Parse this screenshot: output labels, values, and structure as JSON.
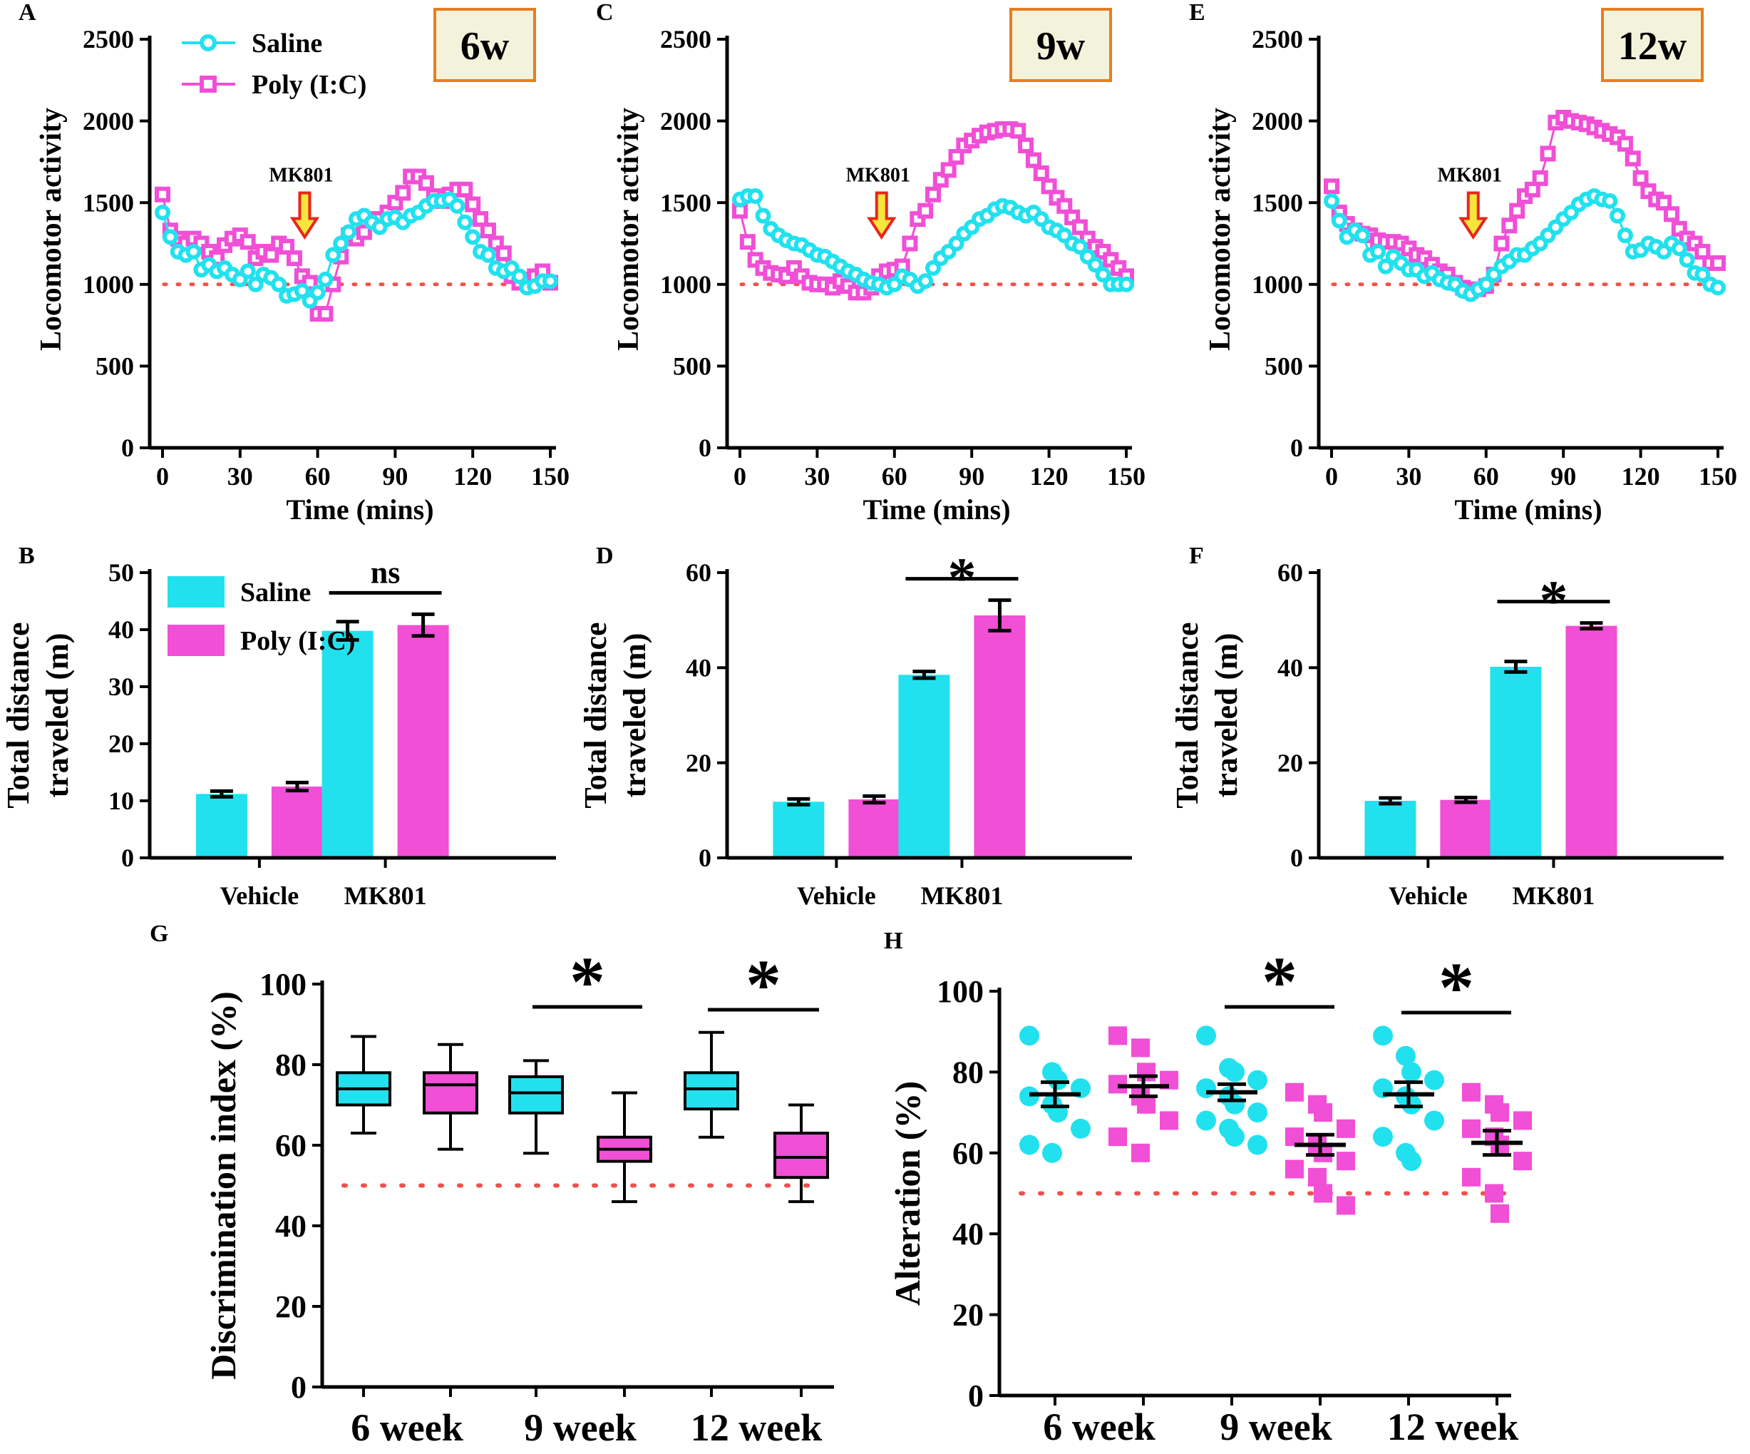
{
  "colors": {
    "saline": "#22E1EE",
    "poly": "#F04FD6",
    "reference": "#F0504A",
    "axis": "#000000",
    "badge_border": "#E87D1E",
    "badge_fill": "#F3F3DC",
    "arrow_fill": "#F5E63B",
    "arrow_stroke": "#E8261B"
  },
  "chart_data": [
    {
      "panel": "A",
      "type": "line",
      "badge": "6w",
      "title": "",
      "xlabel": "Time (mins)",
      "ylabel": "Locomotor activity",
      "xlim": [
        0,
        150
      ],
      "ylim": [
        0,
        2500
      ],
      "xticks": [
        0,
        30,
        60,
        90,
        120,
        150
      ],
      "yticks": [
        0,
        500,
        1000,
        1500,
        2000,
        2500
      ],
      "reference_line": 1000,
      "annotation": {
        "text": "MK801",
        "x": 55
      },
      "legend": [
        "Saline",
        "Poly (I:C)"
      ],
      "x_step": 3,
      "series": [
        {
          "name": "Saline",
          "values": [
            1440,
            1290,
            1200,
            1180,
            1200,
            1090,
            1120,
            1080,
            1100,
            1060,
            1030,
            1080,
            1000,
            1060,
            1040,
            1000,
            930,
            940,
            960,
            900,
            950,
            1030,
            1180,
            1250,
            1320,
            1400,
            1420,
            1380,
            1350,
            1400,
            1410,
            1380,
            1420,
            1440,
            1480,
            1510,
            1510,
            1520,
            1480,
            1380,
            1290,
            1200,
            1180,
            1100,
            1080,
            1100,
            1050,
            980,
            990,
            1020,
            1020
          ]
        },
        {
          "name": "Poly (I:C)",
          "values": [
            1550,
            1330,
            1280,
            1250,
            1280,
            1250,
            1200,
            1160,
            1240,
            1280,
            1300,
            1260,
            1160,
            1200,
            1180,
            1250,
            1230,
            1160,
            1050,
            1010,
            820,
            820,
            1000,
            1170,
            1300,
            1280,
            1320,
            1400,
            1400,
            1440,
            1500,
            1560,
            1660,
            1660,
            1620,
            1540,
            1510,
            1550,
            1580,
            1580,
            1490,
            1400,
            1330,
            1250,
            1190,
            1050,
            1010,
            1030,
            1050,
            1080,
            1010
          ]
        }
      ]
    },
    {
      "panel": "B",
      "type": "bar",
      "title": "",
      "xlabel": "",
      "ylabel": "Total distance traveled (m)",
      "categories": [
        "Vehicle",
        "MK801"
      ],
      "ylim": [
        0,
        50
      ],
      "yticks": [
        0,
        10,
        20,
        30,
        40,
        50
      ],
      "legend": [
        "Saline",
        "Poly (I:C)"
      ],
      "significance": "ns",
      "series": [
        {
          "name": "Saline",
          "values": [
            11.2,
            39.8
          ],
          "errors": [
            0.5,
            1.6
          ]
        },
        {
          "name": "Poly (I:C)",
          "values": [
            12.5,
            40.8
          ],
          "errors": [
            0.7,
            1.9
          ]
        }
      ]
    },
    {
      "panel": "C",
      "type": "line",
      "badge": "9w",
      "title": "",
      "xlabel": "Time (mins)",
      "ylabel": "Locomotor activity",
      "xlim": [
        0,
        150
      ],
      "ylim": [
        0,
        2500
      ],
      "xticks": [
        0,
        30,
        60,
        90,
        120,
        150
      ],
      "yticks": [
        0,
        500,
        1000,
        1500,
        2000,
        2500
      ],
      "reference_line": 1000,
      "annotation": {
        "text": "MK801",
        "x": 55
      },
      "x_step": 3,
      "series": [
        {
          "name": "Saline",
          "values": [
            1520,
            1540,
            1540,
            1420,
            1340,
            1300,
            1270,
            1250,
            1240,
            1210,
            1180,
            1170,
            1140,
            1110,
            1080,
            1060,
            1030,
            1010,
            1000,
            980,
            1000,
            1050,
            1030,
            990,
            1020,
            1100,
            1160,
            1200,
            1250,
            1310,
            1350,
            1400,
            1420,
            1460,
            1480,
            1470,
            1440,
            1420,
            1440,
            1400,
            1350,
            1330,
            1300,
            1250,
            1230,
            1170,
            1120,
            1060,
            1000,
            1000,
            1000
          ]
        },
        {
          "name": "Poly (I:C)",
          "values": [
            1450,
            1260,
            1150,
            1100,
            1070,
            1060,
            1050,
            1100,
            1050,
            1010,
            1000,
            1000,
            980,
            1020,
            990,
            950,
            950,
            980,
            1050,
            1080,
            1090,
            1110,
            1250,
            1400,
            1450,
            1550,
            1640,
            1700,
            1780,
            1850,
            1880,
            1910,
            1930,
            1940,
            1950,
            1950,
            1940,
            1850,
            1760,
            1680,
            1600,
            1530,
            1480,
            1410,
            1350,
            1280,
            1230,
            1200,
            1150,
            1100,
            1050
          ]
        }
      ]
    },
    {
      "panel": "D",
      "type": "bar",
      "title": "",
      "xlabel": "",
      "ylabel": "Total distance traveled (m)",
      "categories": [
        "Vehicle",
        "MK801"
      ],
      "ylim": [
        0,
        60
      ],
      "yticks": [
        0,
        20,
        40,
        60
      ],
      "significance": "*",
      "series": [
        {
          "name": "Saline",
          "values": [
            11.8,
            38.5
          ],
          "errors": [
            0.6,
            0.7
          ]
        },
        {
          "name": "Poly (I:C)",
          "values": [
            12.3,
            51.0
          ],
          "errors": [
            0.7,
            3.2
          ]
        }
      ]
    },
    {
      "panel": "E",
      "type": "line",
      "badge": "12w",
      "title": "",
      "xlabel": "Time (mins)",
      "ylabel": "Locomotor activity",
      "xlim": [
        0,
        150
      ],
      "ylim": [
        0,
        2500
      ],
      "xticks": [
        0,
        30,
        60,
        90,
        120,
        150
      ],
      "yticks": [
        0,
        500,
        1000,
        1500,
        2000,
        2500
      ],
      "reference_line": 1000,
      "annotation": {
        "text": "MK801",
        "x": 55
      },
      "x_step": 3,
      "series": [
        {
          "name": "Saline",
          "values": [
            1510,
            1390,
            1290,
            1330,
            1300,
            1180,
            1200,
            1110,
            1170,
            1130,
            1090,
            1090,
            1050,
            1070,
            1030,
            1010,
            1000,
            960,
            940,
            970,
            1000,
            1060,
            1110,
            1140,
            1180,
            1180,
            1220,
            1250,
            1300,
            1350,
            1400,
            1440,
            1490,
            1520,
            1540,
            1520,
            1510,
            1420,
            1300,
            1200,
            1210,
            1250,
            1230,
            1200,
            1250,
            1220,
            1150,
            1070,
            1060,
            1000,
            980
          ]
        },
        {
          "name": "Poly (I:C)",
          "values": [
            1600,
            1440,
            1370,
            1330,
            1310,
            1300,
            1270,
            1260,
            1260,
            1250,
            1220,
            1180,
            1160,
            1120,
            1080,
            1060,
            1010,
            980,
            960,
            970,
            990,
            1060,
            1250,
            1360,
            1450,
            1540,
            1580,
            1650,
            1800,
            1990,
            2020,
            2000,
            1990,
            1980,
            1960,
            1940,
            1920,
            1900,
            1860,
            1770,
            1650,
            1570,
            1520,
            1500,
            1430,
            1340,
            1280,
            1250,
            1200,
            1130,
            1130
          ]
        }
      ]
    },
    {
      "panel": "F",
      "type": "bar",
      "title": "",
      "xlabel": "",
      "ylabel": "Total distance traveled (m)",
      "categories": [
        "Vehicle",
        "MK801"
      ],
      "ylim": [
        0,
        60
      ],
      "yticks": [
        0,
        20,
        40,
        60
      ],
      "significance": "*",
      "series": [
        {
          "name": "Saline",
          "values": [
            12.0,
            40.2
          ],
          "errors": [
            0.6,
            1.1
          ]
        },
        {
          "name": "Poly (I:C)",
          "values": [
            12.2,
            48.8
          ],
          "errors": [
            0.5,
            0.6
          ]
        }
      ]
    },
    {
      "panel": "G",
      "type": "box",
      "title": "",
      "xlabel": "",
      "ylabel": "Discrimination index (%)",
      "categories": [
        "6 week",
        "9 week",
        "12 week"
      ],
      "ylim": [
        0,
        100
      ],
      "yticks": [
        0,
        20,
        40,
        60,
        80,
        100
      ],
      "reference_line": 50,
      "significance": [
        {
          "between": [
            "9 week Saline",
            "9 week Poly (I:C)"
          ],
          "label": "*"
        },
        {
          "between": [
            "12 week Saline",
            "12 week Poly (I:C)"
          ],
          "label": "*"
        }
      ],
      "boxes": [
        {
          "group": "6 week",
          "series": "Saline",
          "min": 63,
          "q1": 70,
          "median": 74,
          "q3": 78,
          "max": 87
        },
        {
          "group": "6 week",
          "series": "Poly (I:C)",
          "min": 59,
          "q1": 68,
          "median": 75,
          "q3": 78,
          "max": 85
        },
        {
          "group": "9 week",
          "series": "Saline",
          "min": 58,
          "q1": 68,
          "median": 73,
          "q3": 77,
          "max": 81
        },
        {
          "group": "9 week",
          "series": "Poly (I:C)",
          "min": 46,
          "q1": 56,
          "median": 59,
          "q3": 62,
          "max": 73
        },
        {
          "group": "12 week",
          "series": "Saline",
          "min": 62,
          "q1": 69,
          "median": 74,
          "q3": 78,
          "max": 88
        },
        {
          "group": "12 week",
          "series": "Poly (I:C)",
          "min": 46,
          "q1": 52,
          "median": 57,
          "q3": 63,
          "max": 70
        }
      ]
    },
    {
      "panel": "H",
      "type": "scatter",
      "title": "",
      "xlabel": "",
      "ylabel": "Alteration (%)",
      "categories": [
        "6 week",
        "9 week",
        "12 week"
      ],
      "ylim": [
        0,
        100
      ],
      "yticks": [
        0,
        20,
        40,
        60,
        80,
        100
      ],
      "reference_line": 50,
      "significance": [
        {
          "between": [
            "9 week Saline",
            "9 week Poly (I:C)"
          ],
          "label": "*"
        },
        {
          "between": [
            "12 week Saline",
            "12 week Poly (I:C)"
          ],
          "label": "*"
        }
      ],
      "groups": [
        {
          "group": "6 week",
          "series": "Saline",
          "mean": 74.5,
          "sem": 3.0,
          "points": [
            89,
            80,
            78,
            76,
            74,
            72,
            70,
            66,
            62,
            60
          ]
        },
        {
          "group": "6 week",
          "series": "Poly (I:C)",
          "mean": 76.5,
          "sem": 2.5,
          "points": [
            89,
            86,
            80,
            78,
            77,
            74,
            72,
            68,
            64,
            60
          ]
        },
        {
          "group": "9 week",
          "series": "Saline",
          "mean": 75.0,
          "sem": 2.0,
          "points": [
            89,
            81,
            80,
            78,
            76,
            74,
            72,
            70,
            68,
            66,
            64,
            62
          ]
        },
        {
          "group": "9 week",
          "series": "Poly (I:C)",
          "mean": 62.0,
          "sem": 2.5,
          "points": [
            75,
            72,
            70,
            66,
            64,
            62,
            60,
            58,
            56,
            54,
            50,
            47
          ]
        },
        {
          "group": "12 week",
          "series": "Saline",
          "mean": 74.5,
          "sem": 3.0,
          "points": [
            89,
            84,
            80,
            78,
            76,
            74,
            72,
            68,
            64,
            60,
            58
          ]
        },
        {
          "group": "12 week",
          "series": "Poly (I:C)",
          "mean": 62.5,
          "sem": 3.0,
          "points": [
            75,
            72,
            70,
            68,
            66,
            64,
            62,
            58,
            54,
            50,
            45
          ]
        }
      ]
    }
  ]
}
